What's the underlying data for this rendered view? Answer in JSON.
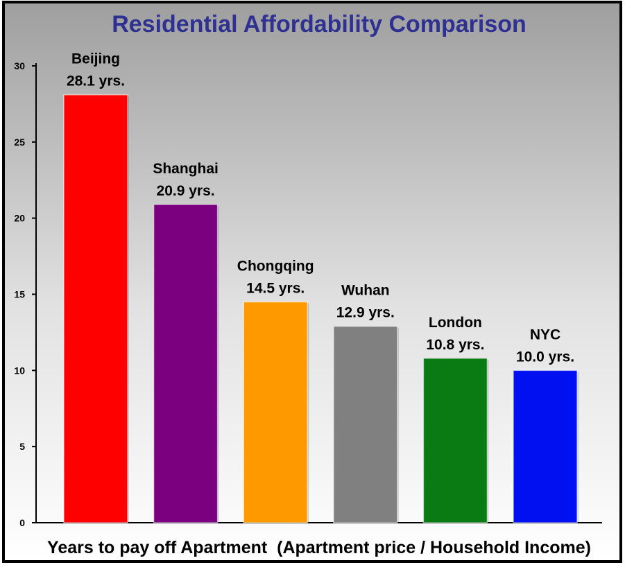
{
  "chart_data": {
    "type": "bar",
    "title": "Residential Affordability Comparison",
    "xlabel": "Years to pay off Apartment  (Apartment price / Household Income)",
    "ylabel": "",
    "ylim": [
      0,
      30
    ],
    "yticks": [
      0,
      5,
      10,
      15,
      20,
      25,
      30
    ],
    "categories": [
      "Beijing",
      "Shanghai",
      "Chongqing",
      "Wuhan",
      "London",
      "NYC"
    ],
    "values": [
      28.1,
      20.9,
      14.5,
      12.9,
      10.8,
      10.0
    ],
    "data_labels": [
      "28.1 yrs.",
      "20.9 yrs.",
      "14.5 yrs.",
      "12.9 yrs.",
      "10.8 yrs.",
      "10.0 yrs."
    ],
    "colors": [
      "#ff0000",
      "#7b0080",
      "#ff9900",
      "#808080",
      "#0a7a12",
      "#0010f0"
    ],
    "grid": false,
    "legend": "none"
  },
  "style": {
    "title_color": "#2e3192",
    "background_top": "#9f9f9f",
    "background_bottom": "#ffffff",
    "border_color": "#000000"
  }
}
